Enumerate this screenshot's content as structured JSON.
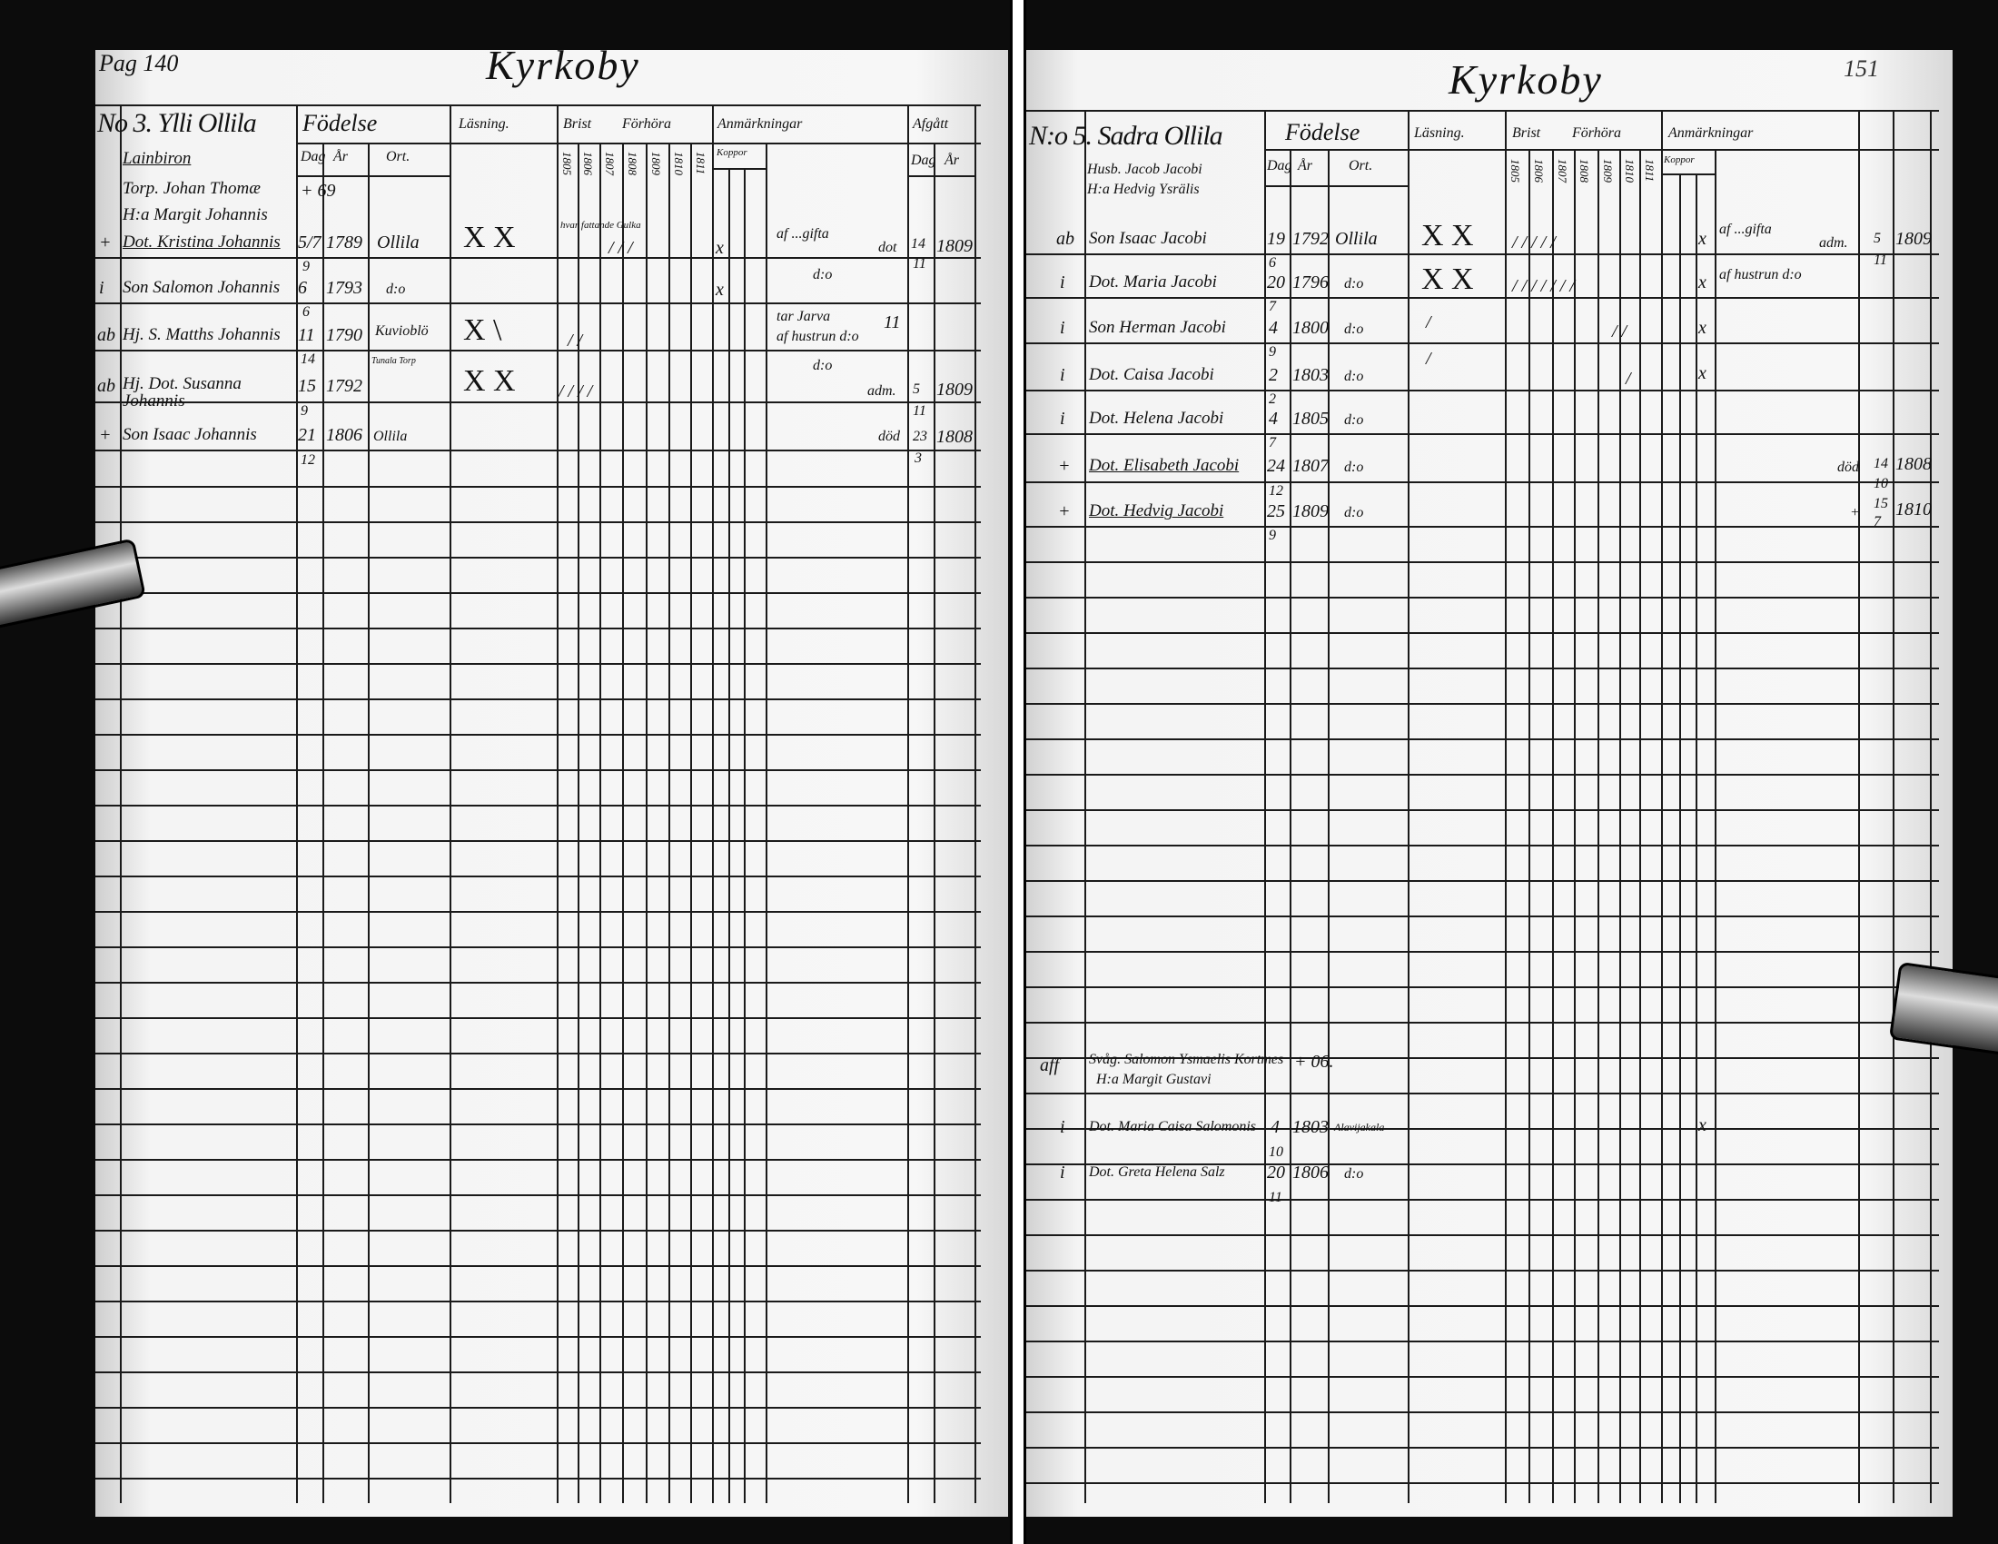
{
  "left_page": {
    "page_number": "Pag 140",
    "title": "Kyrkoby",
    "household": "No 3. Ylli Ollila",
    "household_sub": "Lainbiron",
    "headers": {
      "fodelse": "Födelse",
      "dag": "Dag",
      "ar": "År",
      "ort": "Ort.",
      "lasning": "Läsning.",
      "brist": "Brist",
      "forhora": "Förhöra",
      "anmarkningar": "Anmärkningar",
      "afgatt": "Afgått",
      "afg_dag": "Dag",
      "afg_ar": "År",
      "kopper": "Koppor"
    },
    "years": [
      "1805",
      "1806",
      "1807",
      "1808",
      "1809",
      "1810",
      "1811"
    ],
    "head_of_house": {
      "line1": "Torp. Johan Thomæ",
      "line2": "H:a Margit Johannis",
      "birth": "+ 69"
    },
    "entries": [
      {
        "mark": "+",
        "name": "Dot. Kristina Johannis",
        "dag": "5/7",
        "ar": "1789",
        "month": "9",
        "ort": "Ollila",
        "lasning": "X  X",
        "brist": "hvar fattande Gulka",
        "marks": "/ / /",
        "kopper": "x",
        "note": "af ...gifta",
        "afg_text": "dot",
        "afg_dag": "14",
        "afg_month": "11",
        "afg_ar": "1809"
      },
      {
        "mark": "i",
        "name": "Son Salomon Johannis",
        "dag": "6",
        "ar": "1793",
        "month": "6",
        "ort": "d:o",
        "kopper": "x",
        "note": "d:o"
      },
      {
        "mark": "ab",
        "name": "Hj. S. Matths Johannis",
        "dag": "11",
        "ar": "1790",
        "month": "14",
        "ort": "Kuvioblö",
        "ort2": "Tunala Torp",
        "lasning": "X  \\",
        "marks": "/ /",
        "note": "tar Jarva",
        "note2": "af hustrun d:o",
        "note_num": "11"
      },
      {
        "mark": "ab",
        "name": "Hj. Dot. Susanna Johannis",
        "dag": "15",
        "ar": "1792",
        "month": "9",
        "lasning": "X  X",
        "marks": "/  / / /",
        "note": "d:o",
        "afg_text": "adm.",
        "afg_dag": "5",
        "afg_month": "11",
        "afg_ar": "1809"
      },
      {
        "mark": "+",
        "name": "Son Isaac Johannis",
        "dag": "21",
        "ar": "1806",
        "month": "12",
        "ort": "Ollila",
        "afg_text": "död",
        "afg_dag": "23",
        "afg_month": "3",
        "afg_ar": "1808"
      }
    ]
  },
  "right_page": {
    "page_number": "151",
    "title": "Kyrkoby",
    "household": "N:o 5. Sadra Ollila",
    "husband": "Husb. Jacob Jacobi",
    "wife": "H:a Hedvig Ysrälis",
    "headers": {
      "fodelse": "Födelse",
      "dag": "Dag",
      "ar": "År",
      "ort": "Ort.",
      "lasning": "Läsning.",
      "brist": "Brist",
      "forhora": "Förhöra",
      "anmarkningar": "Anmärkningar",
      "kopper": "Koppor"
    },
    "years": [
      "1805",
      "1806",
      "1807",
      "1808",
      "1809",
      "1810",
      "1811"
    ],
    "entries": [
      {
        "mark": "ab",
        "name": "Son Isaac Jacobi",
        "dag": "19",
        "ar": "1792",
        "month": "6",
        "ort": "Ollila",
        "lasning": "X  X",
        "marks": "/ / / / /",
        "kopper": "x",
        "note": "af ...gifta",
        "afg_text": "adm.",
        "afg_dag": "5",
        "afg_month": "11",
        "afg_ar": "1809"
      },
      {
        "mark": "i",
        "name": "Dot. Maria Jacobi",
        "dag": "20",
        "ar": "1796",
        "month": "7",
        "ort": "d:o",
        "lasning": "X  X",
        "marks": "/ / / / / / /",
        "kopper": "x",
        "note": "af hustrun d:o"
      },
      {
        "mark": "i",
        "name": "Son Herman Jacobi",
        "dag": "4",
        "ar": "1800",
        "month": "9",
        "ort": "d:o",
        "lasning": "/",
        "marks": "/ /",
        "kopper": "x"
      },
      {
        "mark": "i",
        "name": "Dot. Caisa Jacobi",
        "dag": "2",
        "ar": "1803",
        "month": "2",
        "ort": "d:o",
        "lasning": "/",
        "marks": "/",
        "kopper": "x"
      },
      {
        "mark": "i",
        "name": "Dot. Helena Jacobi",
        "dag": "4",
        "ar": "1805",
        "month": "7",
        "ort": "d:o"
      },
      {
        "mark": "+",
        "name": "Dot. Elisabeth Jacobi",
        "dag": "24",
        "ar": "1807",
        "month": "12",
        "ort": "d:o",
        "afg_text": "död",
        "afg_dag": "14",
        "afg_month": "10",
        "afg_ar": "1808"
      },
      {
        "mark": "+",
        "name": "Dot. Hedvig Jacobi",
        "dag": "25",
        "ar": "1809",
        "month": "9",
        "ort": "d:o",
        "afg_text": "+",
        "afg_dag": "15",
        "afg_month": "7",
        "afg_ar": "1810"
      }
    ],
    "second_household": {
      "mark": "aff",
      "line1": "Svåg. Salomon Ysmaelis Kortmes",
      "birth": "+ 06.",
      "line2": "H:a Margit Gustavi",
      "entries": [
        {
          "mark": "i",
          "name": "Dot. Maria Caisa Salomonis",
          "dag": "4",
          "ar": "1803",
          "month": "10",
          "ort": "Alavijakala",
          "kopper": "x"
        },
        {
          "mark": "i",
          "name": "Dot. Greta Helena Salz",
          "dag": "20",
          "ar": "1806",
          "month": "11",
          "ort": "d:o"
        }
      ]
    }
  }
}
